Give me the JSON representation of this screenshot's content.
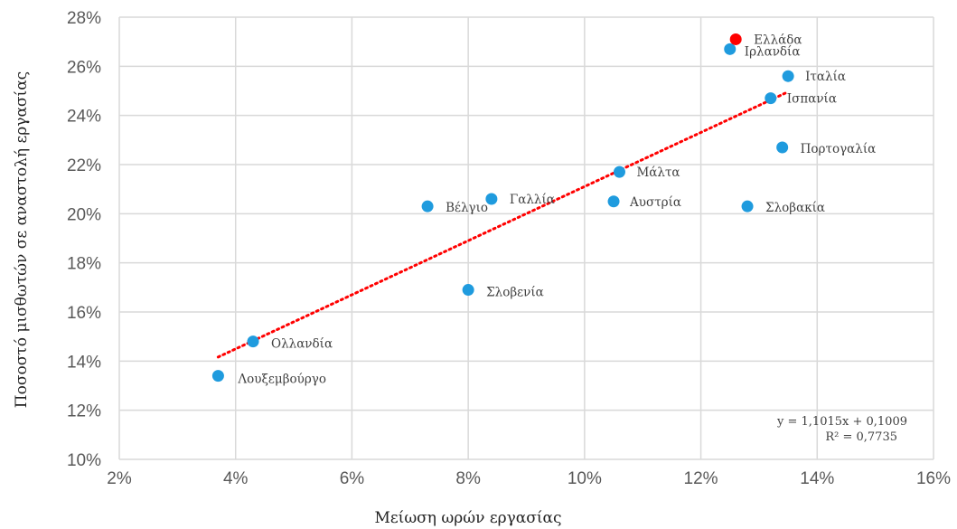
{
  "chart_data": {
    "type": "scatter",
    "xlabel": "Μείωση ωρών εργασίας",
    "ylabel": "Ποσοστό μισθωτών σε αναστολή εργασίας",
    "xlim": [
      0.02,
      0.16
    ],
    "ylim": [
      0.1,
      0.28
    ],
    "xticks": [
      "2%",
      "4%",
      "6%",
      "8%",
      "10%",
      "12%",
      "14%",
      "16%"
    ],
    "yticks": [
      "10%",
      "12%",
      "14%",
      "16%",
      "18%",
      "20%",
      "22%",
      "24%",
      "26%",
      "28%"
    ],
    "grid": true,
    "points": [
      {
        "label": "Λουξεμβούργο",
        "x": 0.037,
        "y": 0.134,
        "color": "#1f9bde"
      },
      {
        "label": "Ολλανδία",
        "x": 0.043,
        "y": 0.148,
        "color": "#1f9bde"
      },
      {
        "label": "Βέλγιο",
        "x": 0.073,
        "y": 0.203,
        "color": "#1f9bde"
      },
      {
        "label": "Σλοβενία",
        "x": 0.08,
        "y": 0.169,
        "color": "#1f9bde"
      },
      {
        "label": "Γαλλία",
        "x": 0.084,
        "y": 0.206,
        "color": "#1f9bde"
      },
      {
        "label": "Αυστρία",
        "x": 0.105,
        "y": 0.205,
        "color": "#1f9bde"
      },
      {
        "label": "Μάλτα",
        "x": 0.106,
        "y": 0.217,
        "color": "#1f9bde"
      },
      {
        "label": "Ιρλανδία",
        "x": 0.125,
        "y": 0.267,
        "color": "#1f9bde"
      },
      {
        "label": "Ελλάδα",
        "x": 0.126,
        "y": 0.271,
        "color": "#ff0000"
      },
      {
        "label": "Σλοβακία",
        "x": 0.128,
        "y": 0.203,
        "color": "#1f9bde"
      },
      {
        "label": "Ισπανία",
        "x": 0.132,
        "y": 0.247,
        "color": "#1f9bde"
      },
      {
        "label": "Πορτογαλία",
        "x": 0.134,
        "y": 0.227,
        "color": "#1f9bde"
      },
      {
        "label": "Ιταλία",
        "x": 0.135,
        "y": 0.256,
        "color": "#1f9bde"
      }
    ],
    "trendline": {
      "equation": "y = 1,1015x + 0,1009",
      "r2": "R² = 0,7735",
      "slope": 1.1015,
      "intercept": 0.1009,
      "x_range": [
        0.037,
        0.135
      ],
      "color": "#ff0000"
    }
  }
}
